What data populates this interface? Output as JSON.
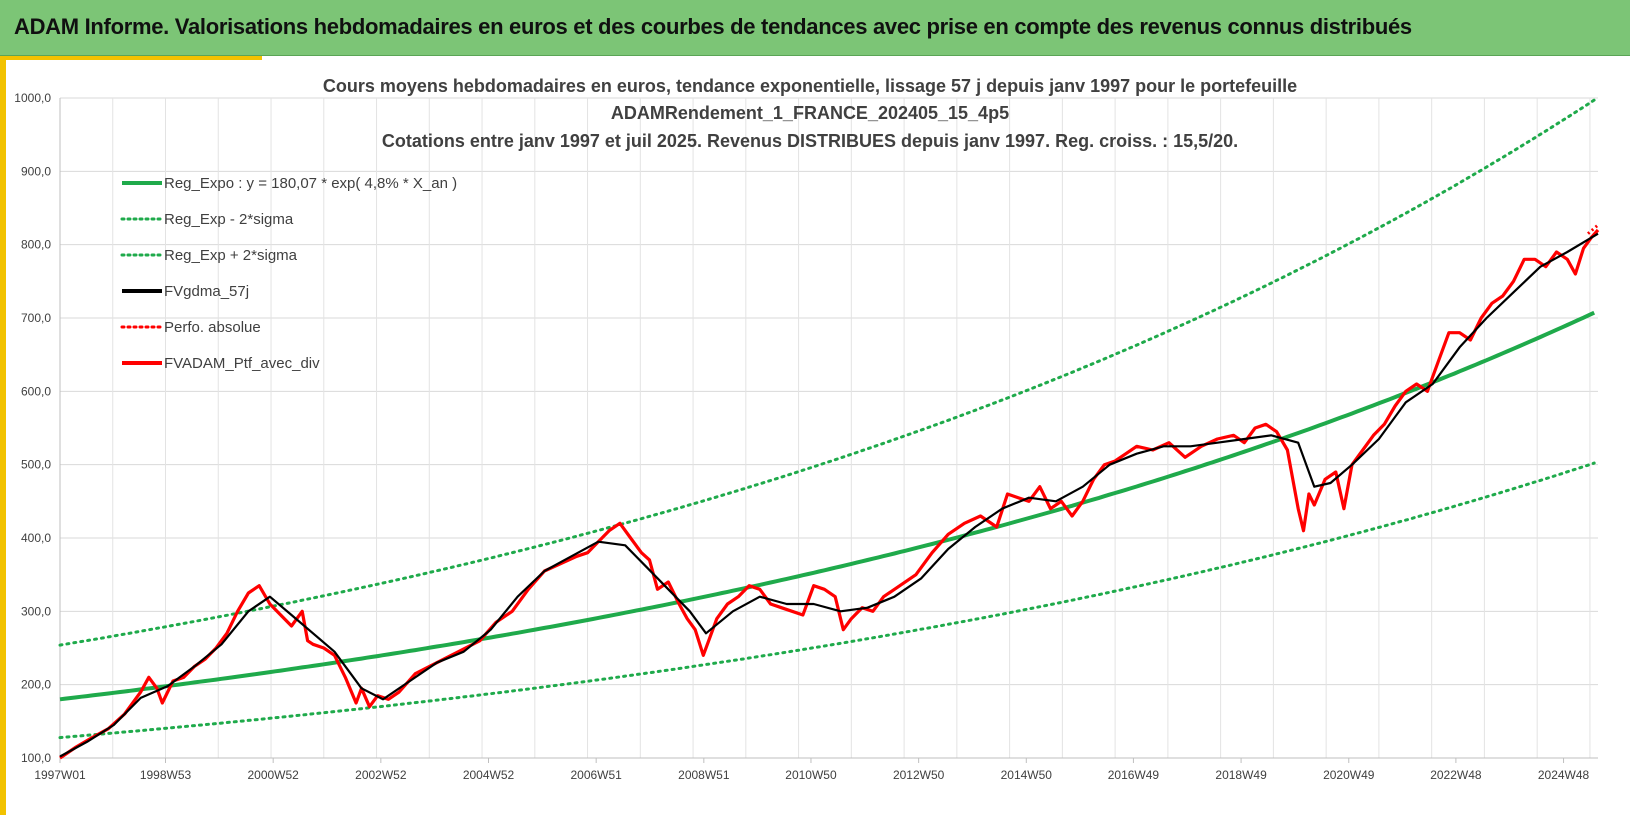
{
  "header": {
    "title": "ADAM Informe. Valorisations hebdomadaires en euros et des courbes de tendances avec prise en compte des revenus connus distribués"
  },
  "colors": {
    "banner": "#7cc576",
    "accent": "#f2c200",
    "trend": "#1faa4b",
    "smooth": "#000000",
    "portfolio": "#ff0000"
  },
  "chart_data": {
    "type": "line",
    "title_lines": [
      "Cours moyens hebdomadaires  en euros, tendance exponentielle, lissage 57 j depuis janv 1997 pour le portefeuille",
      "ADAMRendement_1_FRANCE_202405_15_4p5",
      "Cotations entre janv 1997 et juil 2025. Revenus DISTRIBUES depuis janv 1997. Reg. croiss. : 15,5/20."
    ],
    "xlabel": "",
    "ylabel": "",
    "ylim": [
      100,
      1000
    ],
    "xlim": [
      1997.0,
      2025.57
    ],
    "yticks": [
      100,
      200,
      300,
      400,
      500,
      600,
      700,
      800,
      900,
      1000
    ],
    "ytick_labels": [
      "100,0",
      "200,0",
      "300,0",
      "400,0",
      "500,0",
      "600,0",
      "700,0",
      "800,0",
      "900,0",
      "1000,0"
    ],
    "xtick_positions": [
      1997.0,
      1998.96,
      2000.96,
      2002.96,
      2004.96,
      2006.96,
      2008.96,
      2010.95,
      2012.95,
      2014.95,
      2016.94,
      2018.94,
      2020.94,
      2022.93,
      2024.93
    ],
    "xtick_labels": [
      "1997W01",
      "1998W53",
      "2000W52",
      "2002W52",
      "2004W52",
      "2006W51",
      "2008W51",
      "2010W50",
      "2012W50",
      "2014W50",
      "2016W49",
      "2018W49",
      "2020W49",
      "2022W48",
      "2024W48"
    ],
    "grid": true,
    "legend_position": "top-left",
    "legend": [
      {
        "name": "Reg_Expo : y = 180,07 * exp( 4,8% *  X_an )",
        "color": "#1faa4b",
        "style": "solid"
      },
      {
        "name": "Reg_Exp - 2*sigma",
        "color": "#1faa4b",
        "style": "dotted"
      },
      {
        "name": "Reg_Exp + 2*sigma",
        "color": "#1faa4b",
        "style": "dotted"
      },
      {
        "name": "FVgdma_57j",
        "color": "#000000",
        "style": "solid"
      },
      {
        "name": "Perfo. absolue",
        "color": "#ff0000",
        "style": "dotted"
      },
      {
        "name": "FVADAM_Ptf_avec_div",
        "color": "#ff0000",
        "style": "solid"
      }
    ],
    "trend": {
      "a": 180.07,
      "rate": 0.048,
      "band_lower_factor": 0.71,
      "band_upper_factor": 1.41
    },
    "series": [
      {
        "name": "FVADAM_Ptf_avec_div",
        "x": [
          1997.0,
          1997.3,
          1997.6,
          1997.9,
          1998.2,
          1998.5,
          1998.65,
          1998.8,
          1998.9,
          1999.1,
          1999.3,
          1999.5,
          1999.7,
          1999.9,
          2000.1,
          2000.3,
          2000.5,
          2000.7,
          2000.9,
          2001.1,
          2001.3,
          2001.5,
          2001.6,
          2001.7,
          2001.9,
          2002.1,
          2002.3,
          2002.5,
          2002.6,
          2002.75,
          2002.9,
          2003.1,
          2003.3,
          2003.6,
          2004.0,
          2004.4,
          2004.8,
          2005.1,
          2005.4,
          2005.7,
          2006.0,
          2006.3,
          2006.6,
          2006.8,
          2007.0,
          2007.2,
          2007.4,
          2007.6,
          2007.8,
          2007.95,
          2008.1,
          2008.3,
          2008.5,
          2008.65,
          2008.8,
          2008.95,
          2009.05,
          2009.2,
          2009.4,
          2009.6,
          2009.8,
          2010.0,
          2010.2,
          2010.4,
          2010.6,
          2010.8,
          2011.0,
          2011.2,
          2011.4,
          2011.55,
          2011.7,
          2011.9,
          2012.1,
          2012.3,
          2012.6,
          2012.9,
          2013.2,
          2013.5,
          2013.8,
          2014.1,
          2014.4,
          2014.6,
          2014.8,
          2015.0,
          2015.2,
          2015.4,
          2015.6,
          2015.8,
          2016.0,
          2016.2,
          2016.4,
          2016.6,
          2016.8,
          2017.0,
          2017.3,
          2017.6,
          2017.9,
          2018.2,
          2018.5,
          2018.8,
          2019.0,
          2019.2,
          2019.4,
          2019.6,
          2019.8,
          2020.0,
          2020.1,
          2020.2,
          2020.3,
          2020.5,
          2020.7,
          2020.85,
          2021.0,
          2021.2,
          2021.4,
          2021.6,
          2021.8,
          2022.0,
          2022.2,
          2022.4,
          2022.6,
          2022.8,
          2023.0,
          2023.2,
          2023.4,
          2023.6,
          2023.8,
          2024.0,
          2024.2,
          2024.4,
          2024.6,
          2024.8,
          2025.0,
          2025.15,
          2025.3,
          2025.45,
          2025.57
        ],
        "values": [
          100,
          115,
          128,
          140,
          160,
          190,
          210,
          195,
          175,
          205,
          210,
          225,
          235,
          250,
          270,
          300,
          325,
          335,
          310,
          295,
          280,
          300,
          260,
          255,
          250,
          240,
          210,
          175,
          195,
          170,
          185,
          180,
          190,
          215,
          230,
          245,
          260,
          285,
          300,
          330,
          355,
          365,
          375,
          380,
          395,
          410,
          420,
          400,
          380,
          370,
          330,
          340,
          310,
          290,
          275,
          240,
          260,
          290,
          310,
          320,
          335,
          330,
          310,
          305,
          300,
          295,
          335,
          330,
          320,
          275,
          290,
          305,
          300,
          320,
          335,
          350,
          380,
          405,
          420,
          430,
          415,
          460,
          455,
          450,
          470,
          440,
          450,
          430,
          450,
          480,
          500,
          505,
          515,
          525,
          520,
          530,
          510,
          525,
          535,
          540,
          530,
          550,
          555,
          545,
          520,
          440,
          410,
          460,
          445,
          480,
          490,
          440,
          500,
          520,
          540,
          555,
          580,
          600,
          610,
          600,
          640,
          680,
          680,
          670,
          700,
          720,
          730,
          750,
          780,
          780,
          770,
          790,
          780,
          760,
          795,
          810,
          820
        ]
      },
      {
        "name": "FVgdma_57j",
        "x": [
          1997.0,
          1997.5,
          1998.0,
          1998.5,
          1999.0,
          1999.5,
          2000.0,
          2000.5,
          2000.9,
          2001.3,
          2001.7,
          2002.1,
          2002.6,
          2003.0,
          2003.5,
          2004.0,
          2004.5,
          2005.0,
          2005.5,
          2006.0,
          2006.5,
          2007.0,
          2007.5,
          2007.9,
          2008.3,
          2008.7,
          2009.0,
          2009.5,
          2010.0,
          2010.5,
          2011.0,
          2011.5,
          2012.0,
          2012.5,
          2013.0,
          2013.5,
          2014.0,
          2014.5,
          2015.0,
          2015.5,
          2016.0,
          2016.5,
          2017.0,
          2017.5,
          2018.0,
          2018.5,
          2019.0,
          2019.5,
          2020.0,
          2020.3,
          2020.6,
          2021.0,
          2021.5,
          2022.0,
          2022.5,
          2023.0,
          2023.5,
          2024.0,
          2024.5,
          2025.0,
          2025.57
        ],
        "values": [
          102,
          122,
          145,
          182,
          198,
          225,
          255,
          300,
          320,
          295,
          270,
          245,
          195,
          180,
          205,
          230,
          245,
          275,
          320,
          355,
          375,
          395,
          390,
          360,
          330,
          300,
          270,
          300,
          320,
          310,
          310,
          300,
          305,
          320,
          345,
          385,
          415,
          440,
          455,
          450,
          470,
          500,
          515,
          525,
          525,
          530,
          535,
          540,
          530,
          470,
          475,
          500,
          535,
          585,
          610,
          660,
          700,
          735,
          770,
          790,
          815
        ]
      }
    ]
  }
}
